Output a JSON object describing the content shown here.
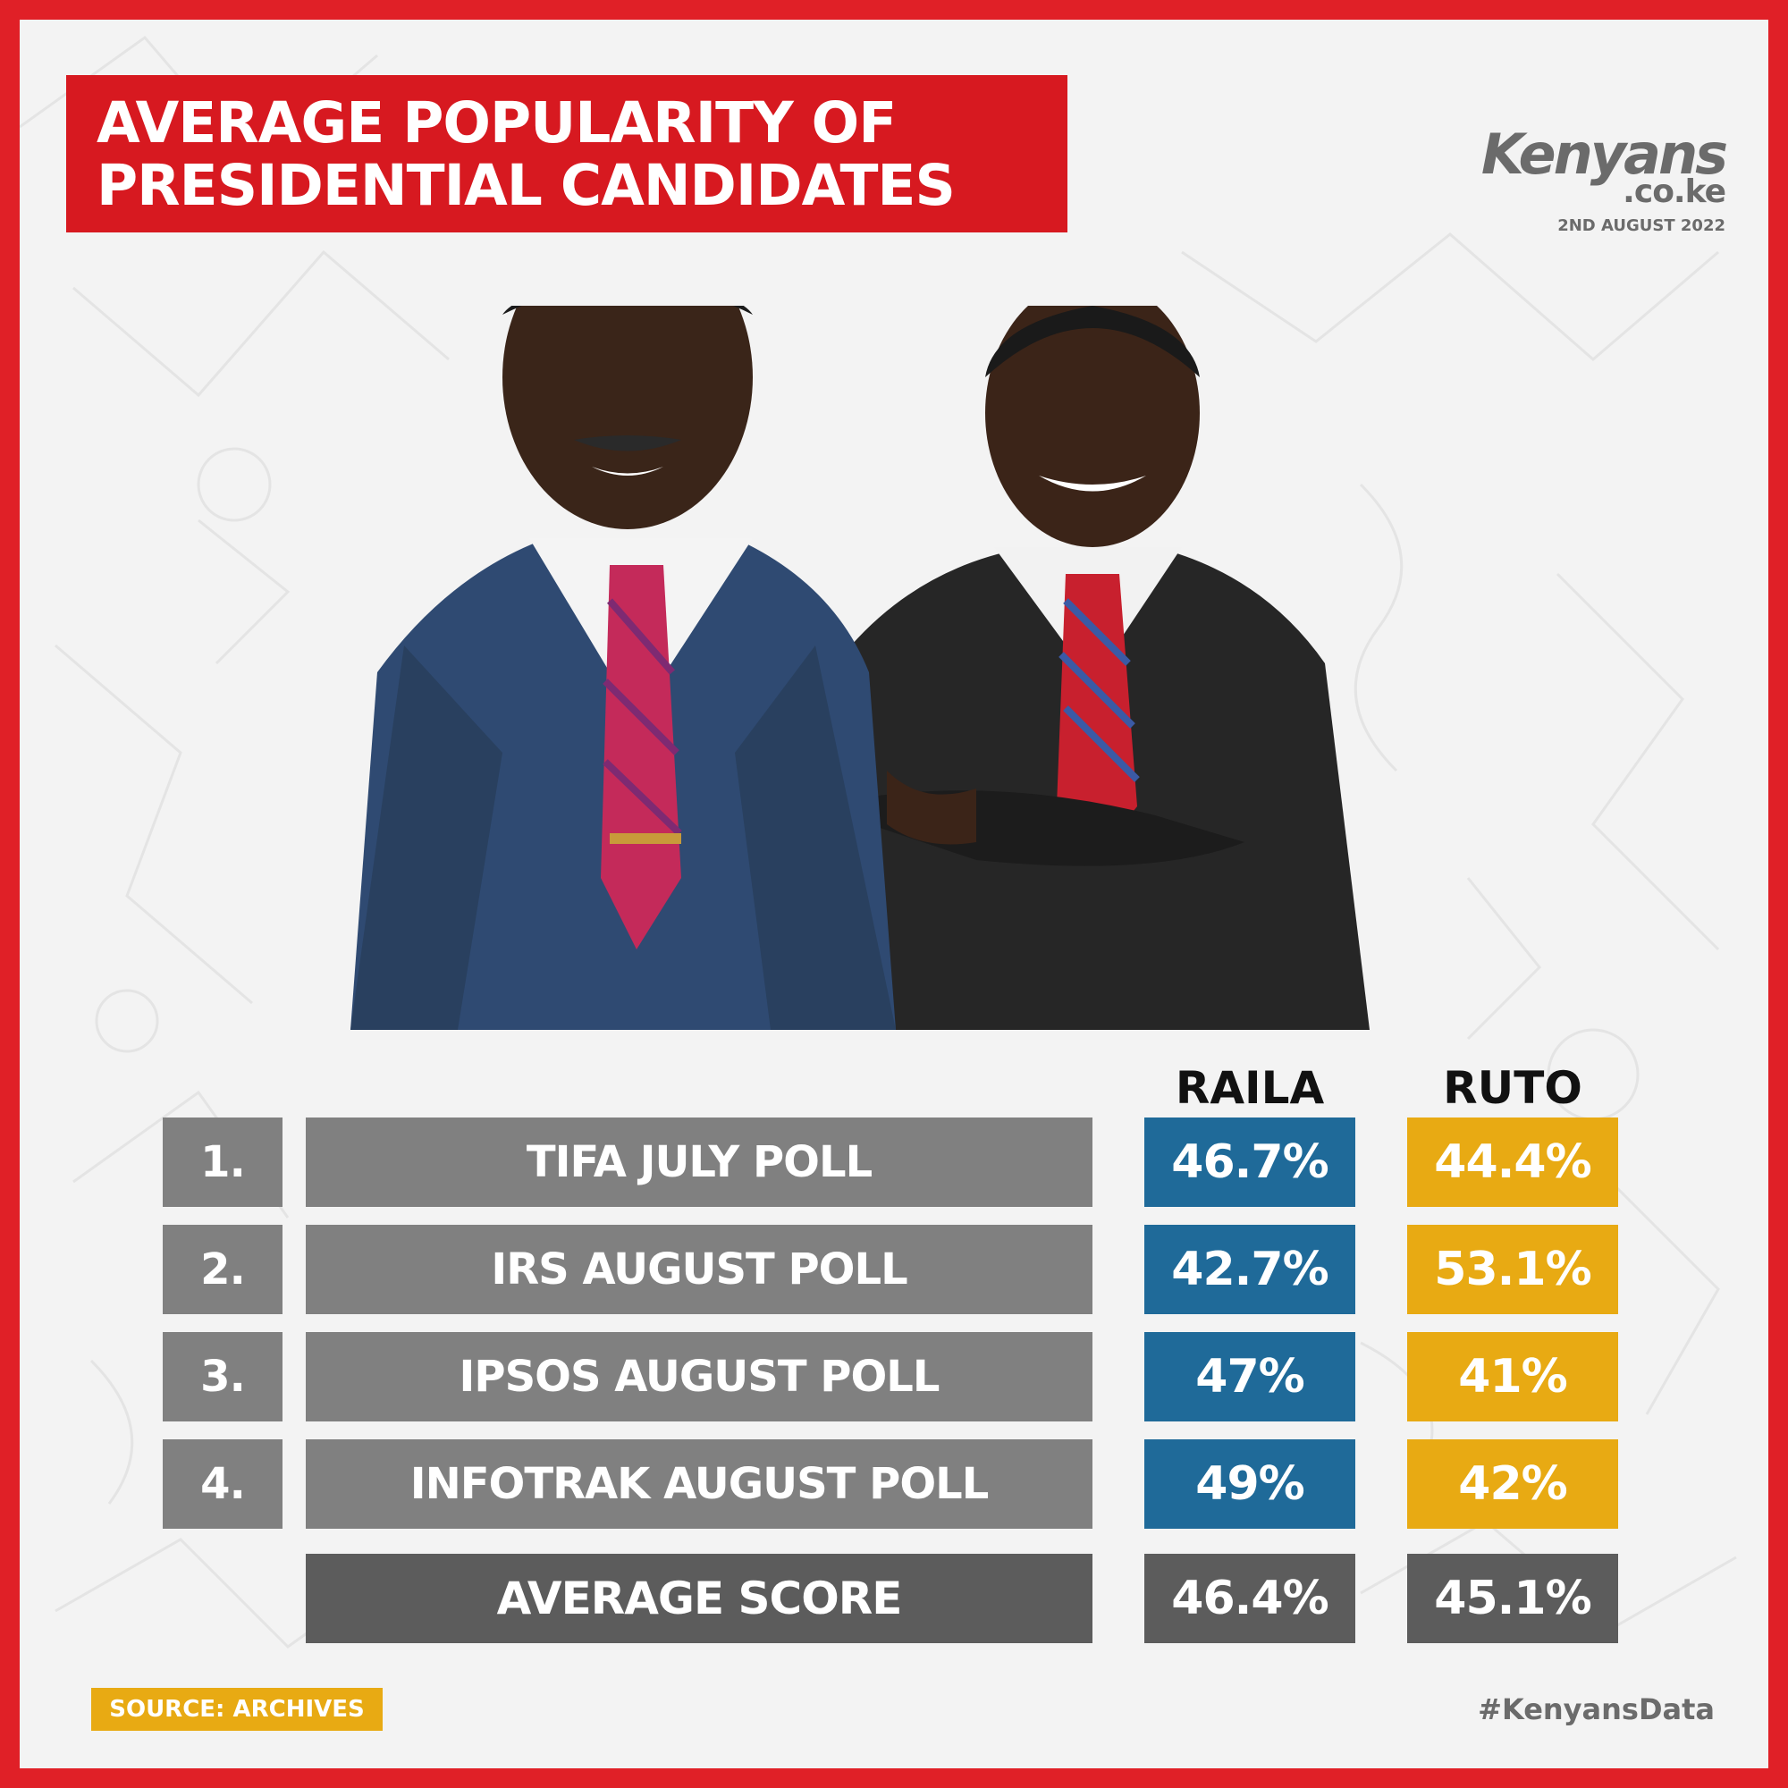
{
  "title": {
    "line1": "AVERAGE POPULARITY OF",
    "line2": "PRESIDENTIAL CANDIDATES"
  },
  "logo": {
    "name": "Kenyans",
    "domain": ".co.ke",
    "date": "2ND AUGUST 2022"
  },
  "colors": {
    "frame": "#e02027",
    "title_bg": "#d71920",
    "raila": "#1f6a99",
    "ruto": "#e8aa13",
    "row_gray": "#808080",
    "avg_gray": "#5c5c5c"
  },
  "chart_data": {
    "type": "table",
    "columns": [
      "RAILA",
      "RUTO"
    ],
    "rows": [
      {
        "num": "1.",
        "poll": "TIFA JULY POLL",
        "raila": "46.7%",
        "ruto": "44.4%"
      },
      {
        "num": "2.",
        "poll": "IRS AUGUST POLL",
        "raila": "42.7%",
        "ruto": "53.1%"
      },
      {
        "num": "3.",
        "poll": "IPSOS AUGUST POLL",
        "raila": "47%",
        "ruto": "41%"
      },
      {
        "num": "4.",
        "poll": "INFOTRAK AUGUST POLL",
        "raila": "49%",
        "ruto": "42%"
      }
    ],
    "average": {
      "label": "AVERAGE SCORE",
      "raila": "46.4%",
      "ruto": "45.1%"
    }
  },
  "footer": {
    "source": "SOURCE: ARCHIVES",
    "hashtag": "#KenyansData"
  }
}
